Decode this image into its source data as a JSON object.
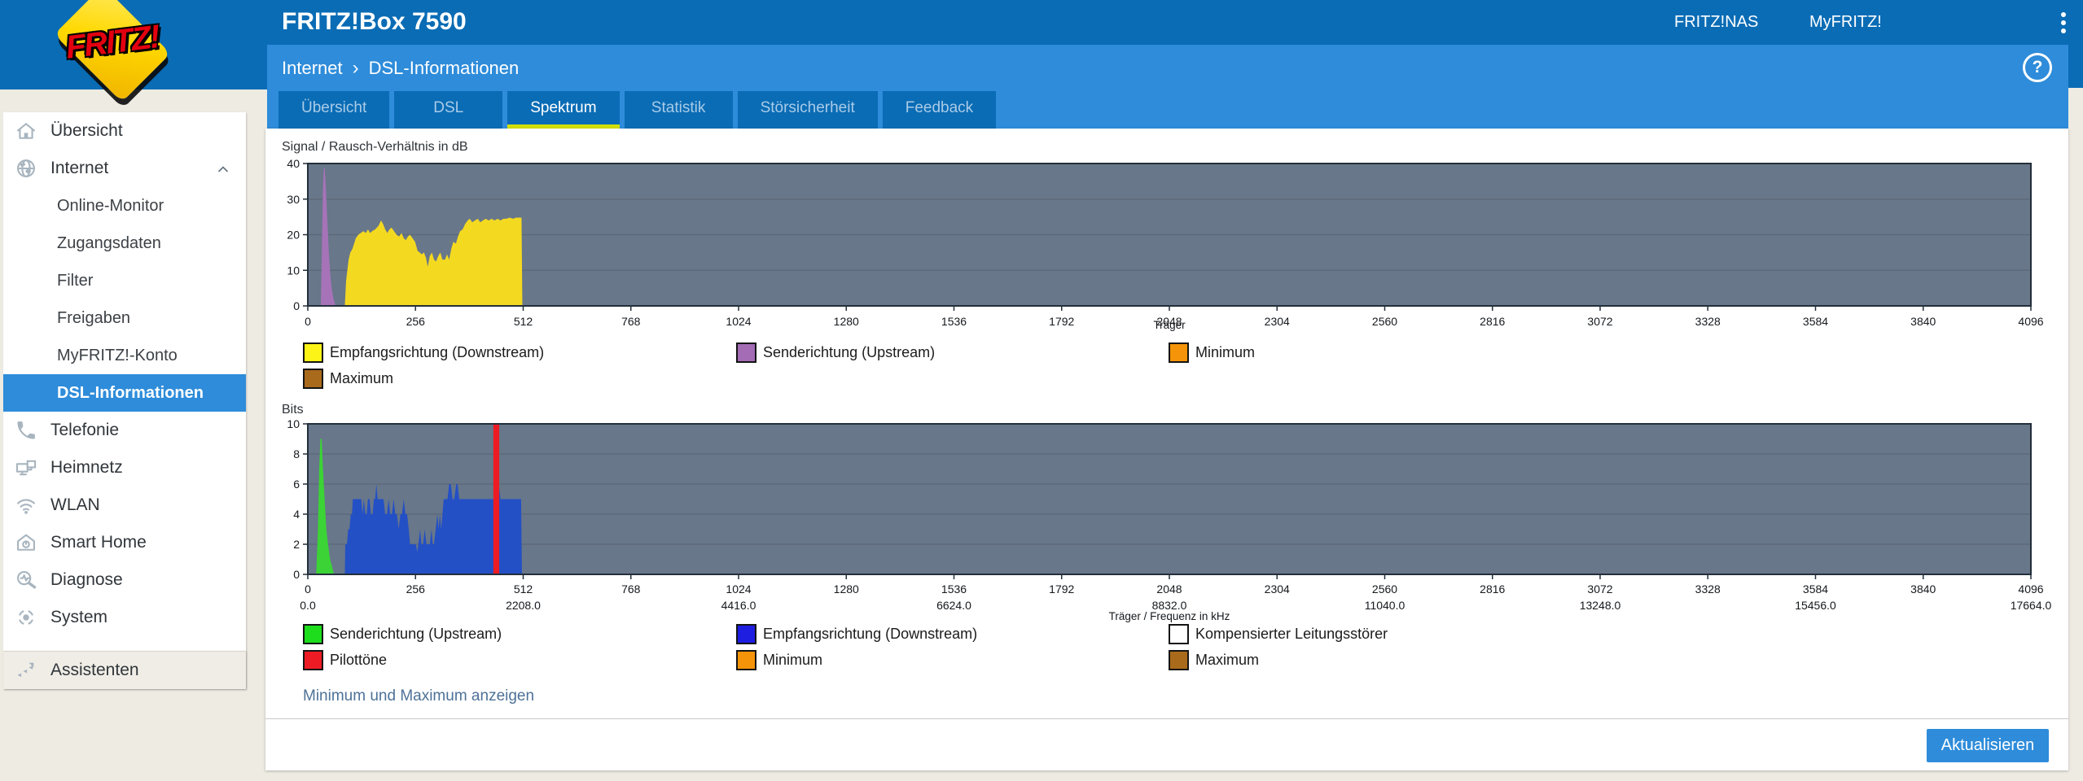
{
  "header": {
    "logo_text": "FRITZ!",
    "product": "FRITZ!Box 7590",
    "nav_links": [
      "FRITZ!NAS",
      "MyFRITZ!"
    ]
  },
  "breadcrumb": {
    "section": "Internet",
    "separator": "›",
    "page": "DSL-Informationen",
    "help_glyph": "?"
  },
  "tabs": [
    {
      "label": "Übersicht",
      "active": false
    },
    {
      "label": "DSL",
      "active": false
    },
    {
      "label": "Spektrum",
      "active": true
    },
    {
      "label": "Statistik",
      "active": false
    },
    {
      "label": "Störsicherheit",
      "active": false
    },
    {
      "label": "Feedback",
      "active": false
    }
  ],
  "sidebar": {
    "items": [
      {
        "label": "Übersicht",
        "icon": "home-icon"
      },
      {
        "label": "Internet",
        "icon": "globe-icon",
        "expanded": true,
        "children": [
          {
            "label": "Online-Monitor"
          },
          {
            "label": "Zugangsdaten"
          },
          {
            "label": "Filter"
          },
          {
            "label": "Freigaben"
          },
          {
            "label": "MyFRITZ!-Konto"
          },
          {
            "label": "DSL-Informationen",
            "selected": true
          }
        ]
      },
      {
        "label": "Telefonie",
        "icon": "phone-icon"
      },
      {
        "label": "Heimnetz",
        "icon": "network-icon"
      },
      {
        "label": "WLAN",
        "icon": "wifi-icon"
      },
      {
        "label": "Smart Home",
        "icon": "smart-home-icon"
      },
      {
        "label": "Diagnose",
        "icon": "diagnose-icon"
      },
      {
        "label": "System",
        "icon": "system-icon"
      }
    ],
    "footer_item": {
      "label": "Assistenten",
      "icon": "assistants-icon"
    }
  },
  "actions": {
    "toggle_minmax_link": "Minimum und Maximum anzeigen",
    "refresh_button": "Aktualisieren"
  },
  "colors": {
    "header_blue": "#0a6cb5",
    "accent_blue": "#2e8cda",
    "tab_underline": "#d2df00",
    "page_bg": "#eeebe3",
    "plot_bg": "#68778a"
  },
  "chart_data": [
    {
      "type": "area",
      "title": "Signal / Rausch-Verhältnis in dB",
      "xlabel": "Träger",
      "ylabel": "",
      "xlim": [
        0,
        4096
      ],
      "ylim": [
        0,
        40
      ],
      "xticks": [
        0,
        256,
        512,
        768,
        1024,
        1280,
        1536,
        1792,
        2048,
        2304,
        2560,
        2816,
        3072,
        3328,
        3584,
        3840,
        4096
      ],
      "yticks": [
        0,
        10,
        20,
        30,
        40
      ],
      "grid": true,
      "legend_position": "bottom",
      "series": [
        {
          "name": "Senderichtung (Upstream)",
          "color": "#a673b8",
          "points": [
            [
              31,
              0
            ],
            [
              34,
              20
            ],
            [
              36,
              33
            ],
            [
              38,
              38.5
            ],
            [
              40,
              39
            ],
            [
              43,
              33
            ],
            [
              46,
              25
            ],
            [
              50,
              15
            ],
            [
              54,
              8
            ],
            [
              58,
              4
            ],
            [
              62,
              1.5
            ],
            [
              66,
              0
            ]
          ]
        },
        {
          "name": "Empfangsrichtung (Downstream)",
          "color": "#f4d921",
          "points": [
            [
              88,
              0
            ],
            [
              91,
              7
            ],
            [
              94,
              10
            ],
            [
              97,
              13
            ],
            [
              101,
              15
            ],
            [
              106,
              16
            ],
            [
              110,
              17.5
            ],
            [
              114,
              19
            ],
            [
              120,
              20
            ],
            [
              126,
              20.5
            ],
            [
              132,
              21
            ],
            [
              138,
              20.5
            ],
            [
              143,
              21.5
            ],
            [
              148,
              20.5
            ],
            [
              153,
              21
            ],
            [
              160,
              21.5
            ],
            [
              168,
              22.5
            ],
            [
              174,
              24
            ],
            [
              179,
              23
            ],
            [
              184,
              21.5
            ],
            [
              189,
              20.5
            ],
            [
              194,
              21.5
            ],
            [
              199,
              22
            ],
            [
              205,
              21
            ],
            [
              211,
              20
            ],
            [
              217,
              19.5
            ],
            [
              223,
              20.5
            ],
            [
              228,
              19
            ],
            [
              233,
              18.5
            ],
            [
              238,
              19.5
            ],
            [
              243,
              20
            ],
            [
              249,
              19
            ],
            [
              255,
              18
            ],
            [
              261,
              15.5
            ],
            [
              266,
              15
            ],
            [
              271,
              14.5
            ],
            [
              276,
              15
            ],
            [
              281,
              13.5
            ],
            [
              285,
              11
            ],
            [
              290,
              14
            ],
            [
              295,
              15
            ],
            [
              300,
              13
            ],
            [
              305,
              12.5
            ],
            [
              310,
              14
            ],
            [
              315,
              15
            ],
            [
              320,
              13
            ],
            [
              326,
              13
            ],
            [
              331,
              14.5
            ],
            [
              336,
              13
            ],
            [
              341,
              16
            ],
            [
              346,
              18
            ],
            [
              352,
              17.5
            ],
            [
              357,
              19.5
            ],
            [
              362,
              21
            ],
            [
              368,
              21.5
            ],
            [
              374,
              23
            ],
            [
              380,
              24
            ],
            [
              385,
              24.5
            ],
            [
              391,
              23.5
            ],
            [
              397,
              24
            ],
            [
              404,
              24.5
            ],
            [
              410,
              23.5
            ],
            [
              416,
              24
            ],
            [
              423,
              24.5
            ],
            [
              430,
              24
            ],
            [
              437,
              24.5
            ],
            [
              444,
              24
            ],
            [
              451,
              24.5
            ],
            [
              458,
              24
            ],
            [
              465,
              24.5
            ],
            [
              472,
              24.5
            ],
            [
              480,
              24.8
            ],
            [
              488,
              24.5
            ],
            [
              495,
              24.8
            ],
            [
              502,
              24.8
            ],
            [
              508,
              24.8
            ],
            [
              510,
              0
            ]
          ]
        }
      ],
      "legend": [
        {
          "label": "Empfangsrichtung (Downstream)",
          "color": "#fbf416"
        },
        {
          "label": "Senderichtung (Upstream)",
          "color": "#a36cb5"
        },
        {
          "label": "Minimum",
          "color": "#f59408"
        },
        {
          "label": "Maximum",
          "color": "#aa6a1c"
        }
      ]
    },
    {
      "type": "area",
      "title": "Bits",
      "xlabel": "Träger / Frequenz in kHz",
      "ylabel": "",
      "xlim": [
        0,
        4096
      ],
      "ylim": [
        0,
        10
      ],
      "xticks": [
        0,
        256,
        512,
        768,
        1024,
        1280,
        1536,
        1792,
        2048,
        2304,
        2560,
        2816,
        3072,
        3328,
        3584,
        3840,
        4096
      ],
      "xticks_freq": [
        {
          "v": 0,
          "label": "0.0"
        },
        {
          "v": 512,
          "label": "2208.0"
        },
        {
          "v": 1024,
          "label": "4416.0"
        },
        {
          "v": 1536,
          "label": "6624.0"
        },
        {
          "v": 2048,
          "label": "8832.0"
        },
        {
          "v": 2560,
          "label": "11040.0"
        },
        {
          "v": 3072,
          "label": "13248.0"
        },
        {
          "v": 3584,
          "label": "15456.0"
        },
        {
          "v": 4096,
          "label": "17664.0"
        }
      ],
      "yticks": [
        0,
        2,
        4,
        6,
        8,
        10
      ],
      "grid": true,
      "legend_position": "bottom",
      "series": [
        {
          "name": "Senderichtung (Upstream)",
          "color": "#3bd335",
          "points": [
            [
              20,
              0
            ],
            [
              24,
              3
            ],
            [
              27,
              7
            ],
            [
              30,
              9
            ],
            [
              33,
              9
            ],
            [
              36,
              7
            ],
            [
              40,
              5
            ],
            [
              44,
              3
            ],
            [
              48,
              2
            ],
            [
              53,
              1
            ],
            [
              58,
              0.5
            ],
            [
              62,
              0
            ]
          ]
        },
        {
          "name": "Empfangsrichtung (Downstream)",
          "color": "#2450c5",
          "points": [
            [
              88,
              0
            ],
            [
              89,
              2
            ],
            [
              93,
              2
            ],
            [
              96,
              3
            ],
            [
              99,
              3
            ],
            [
              102,
              4
            ],
            [
              105,
              4
            ],
            [
              107,
              5
            ],
            [
              112,
              5
            ],
            [
              122,
              5
            ],
            [
              127,
              5
            ],
            [
              130,
              4
            ],
            [
              133,
              5
            ],
            [
              137,
              4
            ],
            [
              140,
              4
            ],
            [
              143,
              5
            ],
            [
              147,
              5
            ],
            [
              150,
              4
            ],
            [
              154,
              4
            ],
            [
              157,
              5
            ],
            [
              160,
              5
            ],
            [
              163,
              6
            ],
            [
              166,
              5
            ],
            [
              170,
              5
            ],
            [
              175,
              5
            ],
            [
              180,
              5
            ],
            [
              184,
              4
            ],
            [
              188,
              4
            ],
            [
              192,
              5
            ],
            [
              196,
              4
            ],
            [
              200,
              4
            ],
            [
              204,
              5
            ],
            [
              208,
              4
            ],
            [
              212,
              4
            ],
            [
              216,
              3
            ],
            [
              220,
              4
            ],
            [
              224,
              4
            ],
            [
              228,
              5
            ],
            [
              232,
              4
            ],
            [
              236,
              4
            ],
            [
              240,
              3
            ],
            [
              243,
              2
            ],
            [
              247,
              2
            ],
            [
              252,
              2
            ],
            [
              257,
              2
            ],
            [
              260,
              1.5
            ],
            [
              263,
              2
            ],
            [
              267,
              3
            ],
            [
              270,
              2
            ],
            [
              274,
              2
            ],
            [
              278,
              3
            ],
            [
              282,
              2
            ],
            [
              286,
              2
            ],
            [
              290,
              2
            ],
            [
              294,
              3
            ],
            [
              297,
              2
            ],
            [
              300,
              2
            ],
            [
              304,
              3
            ],
            [
              308,
              4
            ],
            [
              311,
              3
            ],
            [
              314,
              4
            ],
            [
              317,
              3
            ],
            [
              320,
              4
            ],
            [
              323,
              5
            ],
            [
              328,
              5
            ],
            [
              332,
              5
            ],
            [
              336,
              6
            ],
            [
              340,
              6
            ],
            [
              344,
              5
            ],
            [
              348,
              5
            ],
            [
              353,
              6
            ],
            [
              356,
              6
            ],
            [
              360,
              5
            ],
            [
              364,
              5
            ],
            [
              368,
              5
            ],
            [
              372,
              5
            ],
            [
              376,
              5
            ],
            [
              381,
              5
            ],
            [
              386,
              5
            ],
            [
              391,
              5
            ],
            [
              396,
              5
            ],
            [
              401,
              5
            ],
            [
              406,
              5
            ],
            [
              411,
              5
            ],
            [
              416,
              5
            ],
            [
              421,
              5
            ],
            [
              426,
              5
            ],
            [
              431,
              5
            ],
            [
              436,
              5
            ],
            [
              440,
              5
            ],
            [
              445,
              5
            ],
            [
              450,
              5
            ],
            [
              454,
              6
            ],
            [
              458,
              5
            ],
            [
              463,
              5
            ],
            [
              468,
              5
            ],
            [
              473,
              5
            ],
            [
              478,
              5
            ],
            [
              484,
              5
            ],
            [
              490,
              5
            ],
            [
              496,
              5
            ],
            [
              502,
              5
            ],
            [
              507,
              5
            ],
            [
              509,
              0
            ]
          ]
        },
        {
          "name": "Pilottöne",
          "color": "#ed1c24",
          "points": [
            [
              441,
              0
            ],
            [
              441,
              10
            ],
            [
              455,
              10
            ],
            [
              455,
              0
            ]
          ]
        }
      ],
      "legend": [
        {
          "label": "Senderichtung (Upstream)",
          "color": "#1ddd1d"
        },
        {
          "label": "Empfangsrichtung (Downstream)",
          "color": "#1e1ee0"
        },
        {
          "label": "Kompensierter Leitungsstörer",
          "color": "#ffffff"
        },
        {
          "label": "Pilottöne",
          "color": "#ed1c24"
        },
        {
          "label": "Minimum",
          "color": "#f59408"
        },
        {
          "label": "Maximum",
          "color": "#aa6a1c"
        }
      ]
    }
  ]
}
